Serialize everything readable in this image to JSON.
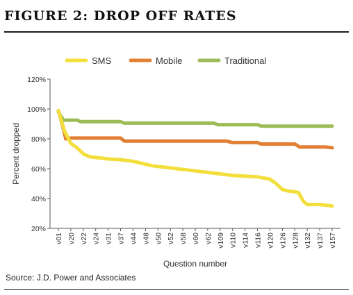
{
  "figure": {
    "title": "FIGURE 2: DROP OFF RATES",
    "source": "Source: J.D. Power and Associates"
  },
  "chart_data": {
    "type": "line",
    "xlabel": "Question number",
    "ylabel": "Percent dropped",
    "ylim": [
      20,
      120
    ],
    "y_ticks": [
      20,
      40,
      60,
      80,
      100,
      120
    ],
    "y_tick_labels": [
      "20%",
      "40%",
      "60%",
      "80%",
      "100%",
      "120%"
    ],
    "x_tick_labels": [
      "v01",
      "v20",
      "v22",
      "v24",
      "v31",
      "v37",
      "v44",
      "v48",
      "v50",
      "v52",
      "v58",
      "v60",
      "v62",
      "v109",
      "v110",
      "v114",
      "v116",
      "v120",
      "v126",
      "v128",
      "v132",
      "v137",
      "v157"
    ],
    "legend_position": "top",
    "grid": false,
    "series": [
      {
        "name": "SMS",
        "color": "#f2df3c",
        "points": [
          [
            0,
            99
          ],
          [
            0.5,
            85
          ],
          [
            1,
            77
          ],
          [
            1.5,
            74
          ],
          [
            2,
            70
          ],
          [
            2.5,
            68
          ],
          [
            3,
            67.5
          ],
          [
            3.5,
            67
          ],
          [
            4,
            66.5
          ],
          [
            5,
            66
          ],
          [
            5.5,
            65.5
          ],
          [
            6,
            65
          ],
          [
            6.5,
            64
          ],
          [
            7,
            63
          ],
          [
            7.5,
            62
          ],
          [
            8,
            61.5
          ],
          [
            9,
            60.5
          ],
          [
            10,
            59.5
          ],
          [
            11,
            58.5
          ],
          [
            12,
            57.5
          ],
          [
            13,
            56.5
          ],
          [
            14,
            55.5
          ],
          [
            15,
            55
          ],
          [
            16,
            54.5
          ],
          [
            17,
            53
          ],
          [
            17.5,
            50
          ],
          [
            18,
            46
          ],
          [
            18.5,
            45
          ],
          [
            19,
            44.5
          ],
          [
            19.3,
            44
          ],
          [
            19.7,
            38
          ],
          [
            20,
            36
          ],
          [
            21,
            36
          ],
          [
            21.5,
            35.5
          ],
          [
            22,
            35
          ]
        ]
      },
      {
        "name": "Mobile",
        "color": "#e27f35",
        "points": [
          [
            0,
            99
          ],
          [
            0.3,
            90
          ],
          [
            0.6,
            80
          ],
          [
            1,
            80.5
          ],
          [
            5,
            80.5
          ],
          [
            5.3,
            78.5
          ],
          [
            13.5,
            78.5
          ],
          [
            14,
            77.5
          ],
          [
            16,
            77.5
          ],
          [
            16.3,
            76.5
          ],
          [
            19,
            76.5
          ],
          [
            19.4,
            74.5
          ],
          [
            21.5,
            74.5
          ],
          [
            22,
            74
          ]
        ]
      },
      {
        "name": "Traditional",
        "color": "#9dbb57",
        "points": [
          [
            0,
            98
          ],
          [
            0.4,
            92.5
          ],
          [
            1.5,
            92.5
          ],
          [
            1.8,
            91.5
          ],
          [
            5,
            91.5
          ],
          [
            5.3,
            90.5
          ],
          [
            12.5,
            90.5
          ],
          [
            12.8,
            89.5
          ],
          [
            16,
            89.5
          ],
          [
            16.3,
            88.5
          ],
          [
            22,
            88.5
          ]
        ]
      }
    ]
  }
}
